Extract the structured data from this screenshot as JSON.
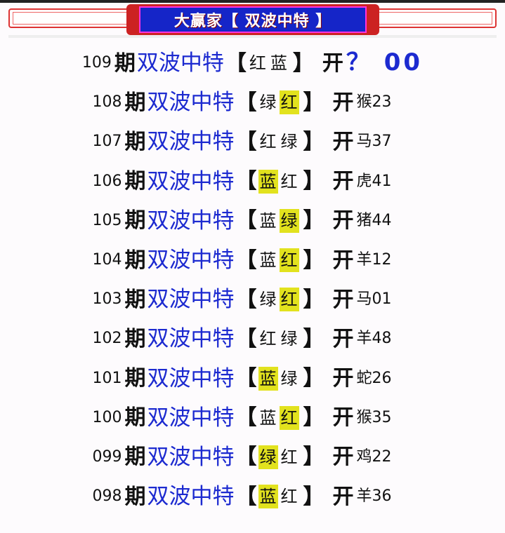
{
  "banner": {
    "title": "大赢家【 双波中特 】"
  },
  "labels": {
    "period_suffix": "期",
    "title": "双波中特",
    "left_bracket": "【",
    "right_bracket": "】",
    "open": "开"
  },
  "colors": {
    "title_blue": "#1c2ad0",
    "highlight": "#e2e21e",
    "banner_blue": "#1525c8",
    "banner_red": "#cc2222"
  },
  "rows": [
    {
      "period": "109",
      "picks": [
        "红",
        "蓝"
      ],
      "highlight": -1,
      "result": "？ 00"
    },
    {
      "period": "108",
      "picks": [
        "绿",
        "红"
      ],
      "highlight": 1,
      "result": "猴23"
    },
    {
      "period": "107",
      "picks": [
        "红",
        "绿"
      ],
      "highlight": -1,
      "result": "马37"
    },
    {
      "period": "106",
      "picks": [
        "蓝",
        "红"
      ],
      "highlight": 0,
      "result": "虎41"
    },
    {
      "period": "105",
      "picks": [
        "蓝",
        "绿"
      ],
      "highlight": 1,
      "result": "猪44"
    },
    {
      "period": "104",
      "picks": [
        "蓝",
        "红"
      ],
      "highlight": 1,
      "result": "羊12"
    },
    {
      "period": "103",
      "picks": [
        "绿",
        "红"
      ],
      "highlight": 1,
      "result": "马01"
    },
    {
      "period": "102",
      "picks": [
        "红",
        "绿"
      ],
      "highlight": -1,
      "result": "羊48"
    },
    {
      "period": "101",
      "picks": [
        "蓝",
        "绿"
      ],
      "highlight": 0,
      "result": "蛇26"
    },
    {
      "period": "100",
      "picks": [
        "蓝",
        "红"
      ],
      "highlight": 1,
      "result": "猴35"
    },
    {
      "period": "099",
      "picks": [
        "绿",
        "红"
      ],
      "highlight": 0,
      "result": "鸡22"
    },
    {
      "period": "098",
      "picks": [
        "蓝",
        "红"
      ],
      "highlight": 0,
      "result": "羊36"
    }
  ]
}
